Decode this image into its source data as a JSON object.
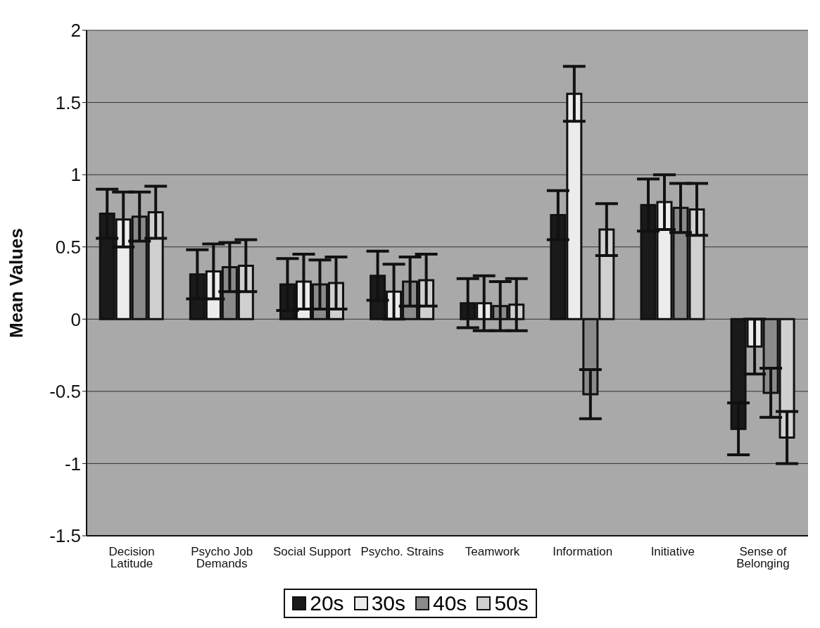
{
  "chart_data": {
    "type": "bar",
    "ylabel": "Mean Values",
    "categories": [
      "Decision Latitude",
      "Psycho Job Demands",
      "Social Support",
      "Psycho. Strains",
      "Teamwork",
      "Information",
      "Initiative",
      "Sense of Belonging"
    ],
    "series": [
      {
        "name": "20s",
        "color": "#1a1a1a",
        "values": [
          0.73,
          0.31,
          0.24,
          0.3,
          0.11,
          0.72,
          0.79,
          -0.76
        ],
        "errors": [
          0.17,
          0.17,
          0.18,
          0.17,
          0.17,
          0.17,
          0.18,
          0.18
        ]
      },
      {
        "name": "30s",
        "color": "#ececec",
        "values": [
          0.69,
          0.33,
          0.26,
          0.19,
          0.11,
          1.56,
          0.81,
          -0.19
        ],
        "errors": [
          0.19,
          0.19,
          0.19,
          0.19,
          0.19,
          0.19,
          0.19,
          0.19
        ]
      },
      {
        "name": "40s",
        "color": "#8a8a8a",
        "values": [
          0.71,
          0.36,
          0.24,
          0.26,
          0.09,
          -0.52,
          0.77,
          -0.51
        ],
        "errors": [
          0.17,
          0.17,
          0.17,
          0.17,
          0.17,
          0.17,
          0.17,
          0.17
        ]
      },
      {
        "name": "50s",
        "color": "#d0d0d0",
        "values": [
          0.74,
          0.37,
          0.25,
          0.27,
          0.1,
          0.62,
          0.76,
          -0.82
        ],
        "errors": [
          0.18,
          0.18,
          0.18,
          0.18,
          0.18,
          0.18,
          0.18,
          0.18
        ]
      }
    ],
    "ylim": [
      -1.5,
      2
    ],
    "yticks": [
      -1.5,
      -1,
      -0.5,
      0,
      0.5,
      1,
      1.5,
      2
    ],
    "grid": "y",
    "legend": "bottom"
  }
}
